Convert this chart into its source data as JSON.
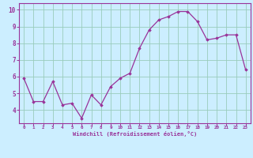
{
  "x": [
    0,
    1,
    2,
    3,
    4,
    5,
    6,
    7,
    8,
    9,
    10,
    11,
    12,
    13,
    14,
    15,
    16,
    17,
    18,
    19,
    20,
    21,
    22,
    23
  ],
  "y": [
    5.9,
    4.5,
    4.5,
    5.7,
    4.3,
    4.4,
    3.5,
    4.9,
    4.3,
    5.4,
    5.9,
    6.2,
    7.7,
    8.8,
    9.4,
    9.6,
    9.9,
    9.9,
    9.3,
    8.2,
    8.3,
    8.5,
    8.5,
    6.4
  ],
  "line_color": "#993399",
  "marker": "D",
  "marker_size": 1.8,
  "bg_color": "#cceeff",
  "grid_color": "#99ccbb",
  "xlabel": "Windchill (Refroidissement éolien,°C)",
  "xlabel_color": "#993399",
  "tick_color": "#993399",
  "axis_line_color": "#993399",
  "ylim": [
    3.2,
    10.4
  ],
  "xlim": [
    -0.5,
    23.5
  ],
  "yticks": [
    4,
    5,
    6,
    7,
    8,
    9,
    10
  ],
  "xticks": [
    0,
    1,
    2,
    3,
    4,
    5,
    6,
    7,
    8,
    9,
    10,
    11,
    12,
    13,
    14,
    15,
    16,
    17,
    18,
    19,
    20,
    21,
    22,
    23
  ]
}
